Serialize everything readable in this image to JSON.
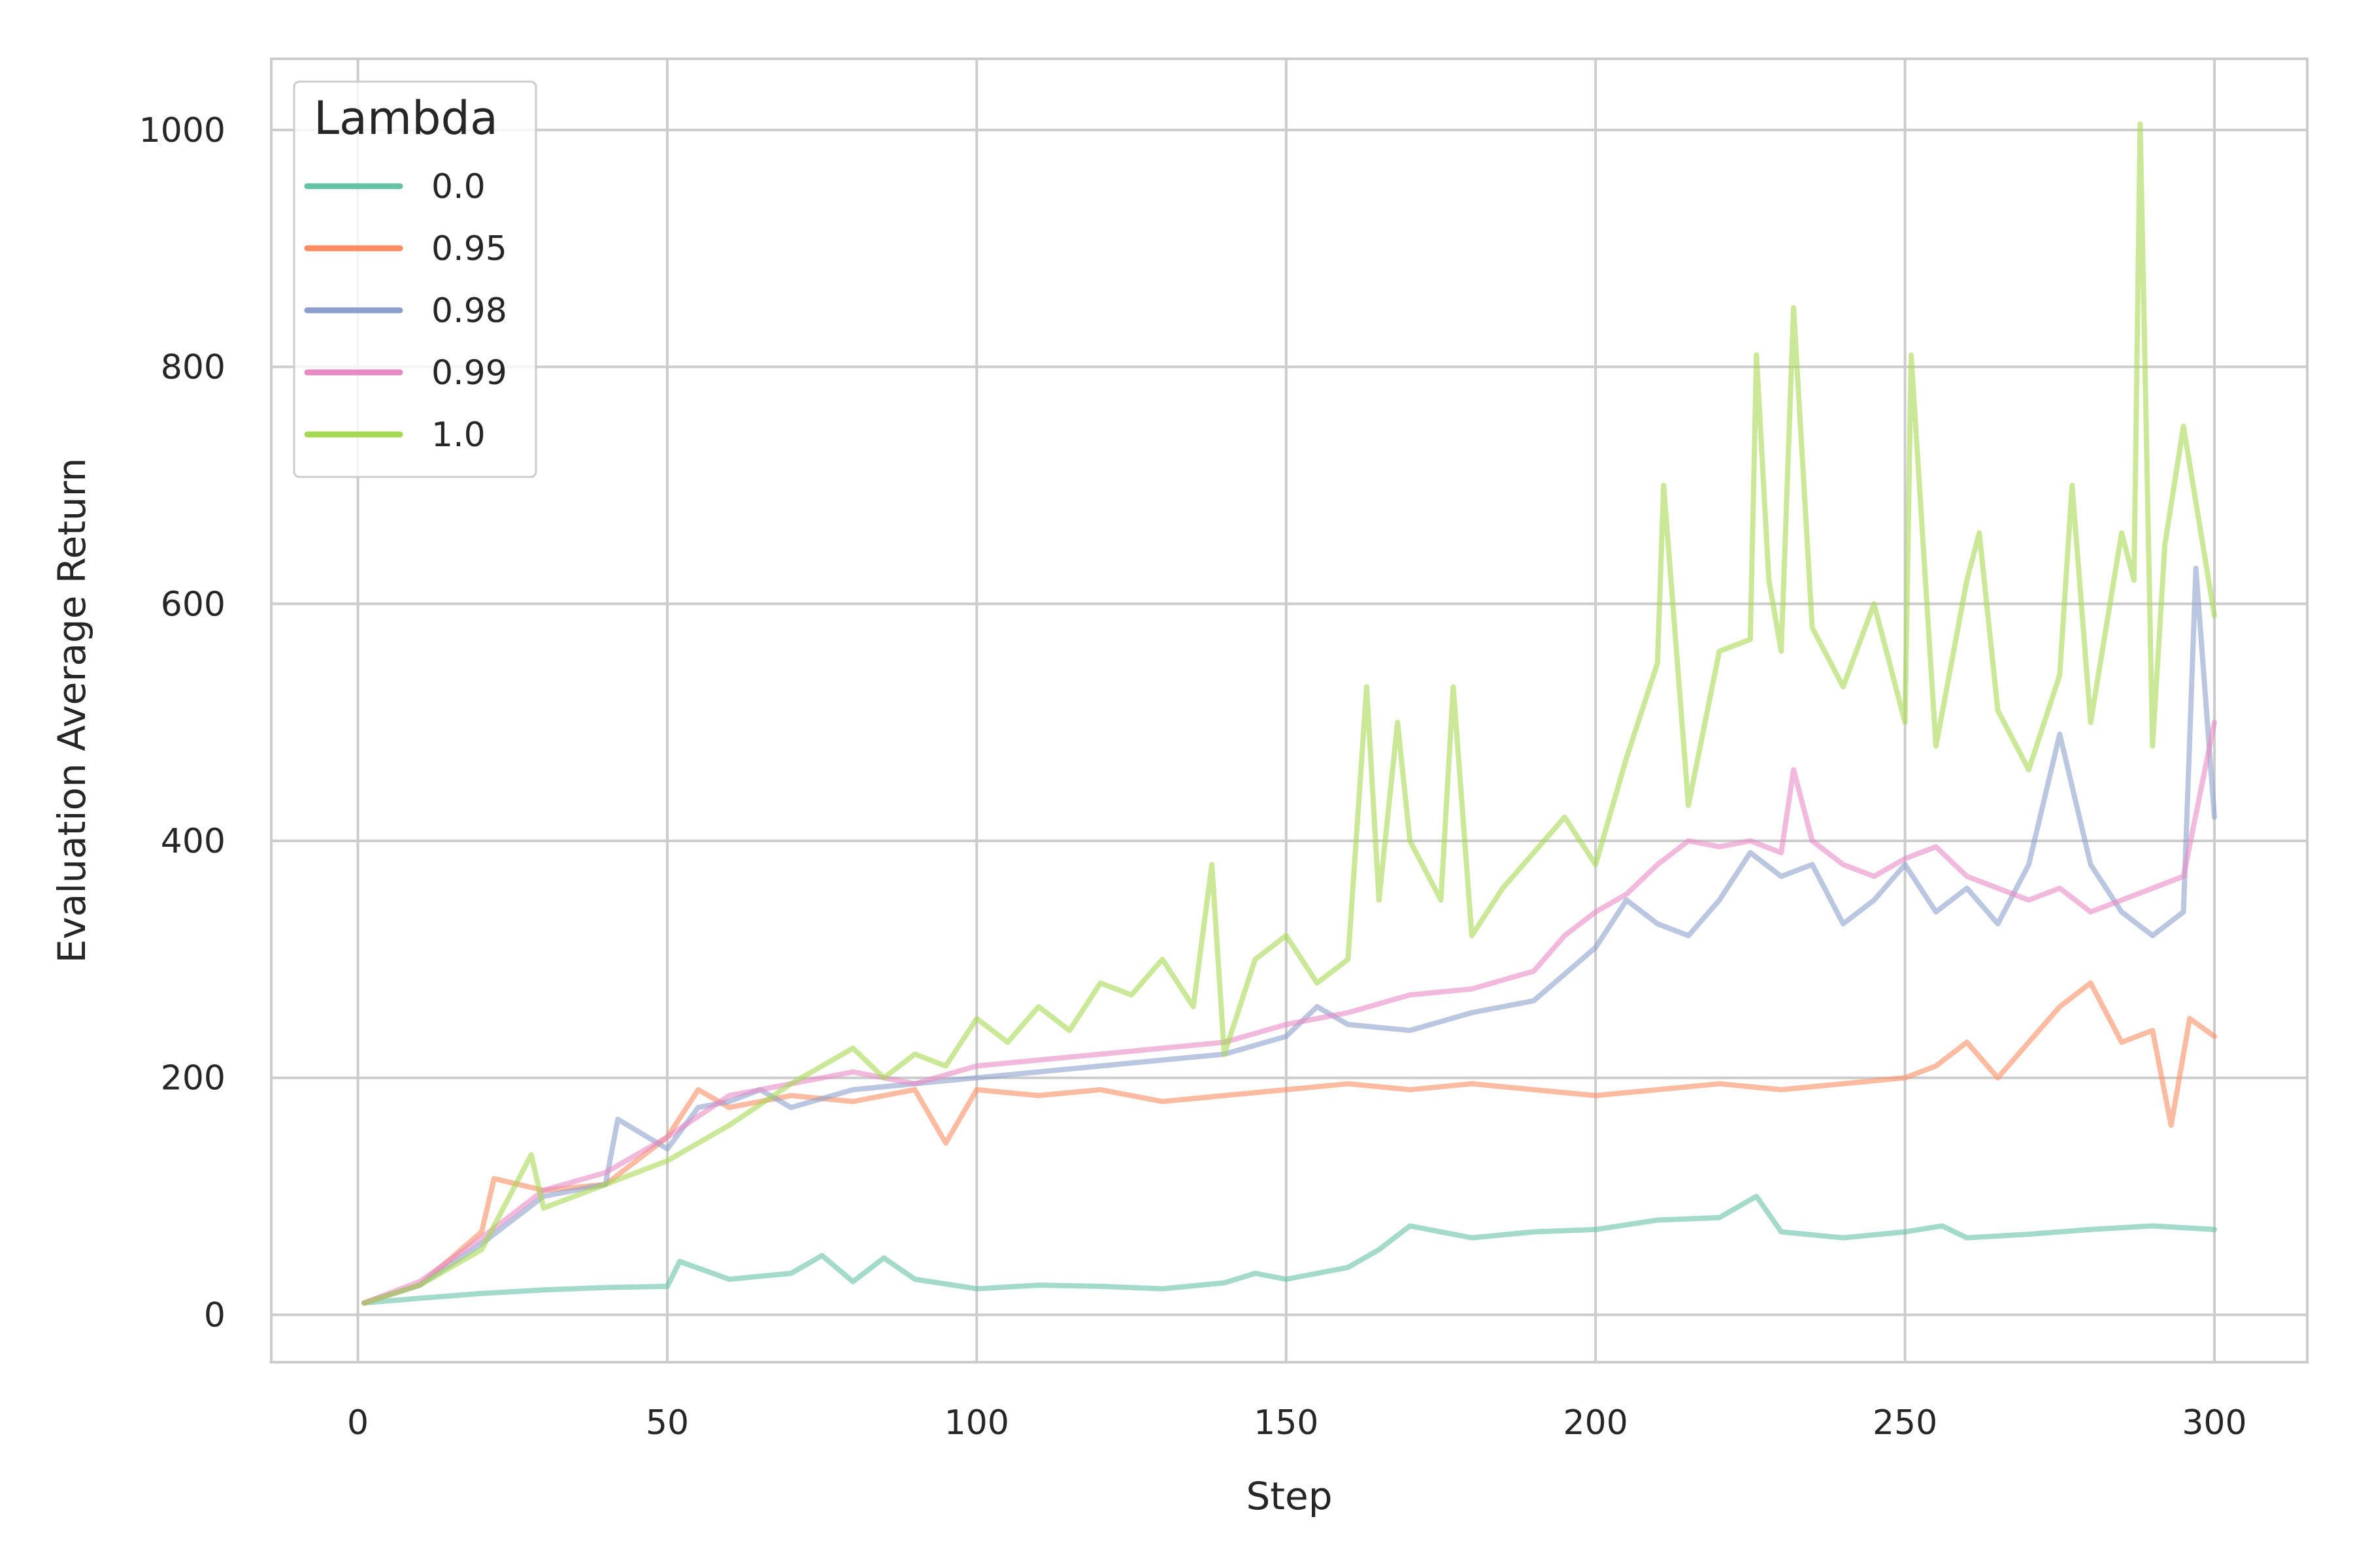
{
  "chart_data": {
    "type": "line",
    "xlabel": "Step",
    "ylabel": "Evaluation Average Return",
    "xlim": [
      -14,
      315
    ],
    "ylim": [
      -40,
      1060
    ],
    "xticks": [
      0,
      50,
      100,
      150,
      200,
      250,
      300
    ],
    "yticks": [
      0,
      200,
      400,
      600,
      800,
      1000
    ],
    "grid": true,
    "legend": {
      "title": "Lambda",
      "placement": "top-left"
    },
    "series": [
      {
        "name": "0.0",
        "color": "#66c2a5",
        "x": [
          1,
          10,
          20,
          30,
          40,
          50,
          52,
          60,
          70,
          75,
          80,
          85,
          90,
          100,
          110,
          120,
          130,
          140,
          145,
          150,
          160,
          165,
          170,
          180,
          190,
          200,
          210,
          220,
          226,
          230,
          240,
          250,
          256,
          260,
          270,
          280,
          290,
          300
        ],
        "y": [
          10,
          14,
          18,
          21,
          23,
          24,
          45,
          30,
          35,
          50,
          28,
          48,
          30,
          22,
          25,
          24,
          22,
          27,
          35,
          30,
          40,
          55,
          75,
          65,
          70,
          72,
          80,
          82,
          100,
          70,
          65,
          70,
          75,
          65,
          68,
          72,
          75,
          72
        ]
      },
      {
        "name": "0.95",
        "color": "#fc8d62",
        "x": [
          1,
          10,
          20,
          22,
          30,
          40,
          50,
          55,
          60,
          70,
          80,
          90,
          95,
          100,
          110,
          120,
          130,
          140,
          150,
          160,
          170,
          180,
          190,
          200,
          210,
          220,
          230,
          240,
          250,
          255,
          260,
          265,
          270,
          275,
          280,
          285,
          290,
          293,
          296,
          300
        ],
        "y": [
          10,
          25,
          70,
          115,
          105,
          110,
          150,
          190,
          175,
          185,
          180,
          190,
          145,
          190,
          185,
          190,
          180,
          185,
          190,
          195,
          190,
          195,
          190,
          185,
          190,
          195,
          190,
          195,
          200,
          210,
          230,
          200,
          230,
          260,
          280,
          230,
          240,
          160,
          250,
          235
        ]
      },
      {
        "name": "0.98",
        "color": "#8da0cb",
        "x": [
          1,
          10,
          20,
          30,
          40,
          42,
          50,
          55,
          60,
          65,
          70,
          80,
          90,
          100,
          110,
          120,
          130,
          140,
          150,
          155,
          160,
          170,
          180,
          190,
          200,
          205,
          210,
          215,
          220,
          225,
          230,
          235,
          240,
          245,
          250,
          255,
          260,
          265,
          270,
          275,
          280,
          285,
          290,
          295,
          297,
          300
        ],
        "y": [
          10,
          25,
          60,
          100,
          110,
          165,
          140,
          175,
          180,
          190,
          175,
          190,
          195,
          200,
          205,
          210,
          215,
          220,
          235,
          260,
          245,
          240,
          255,
          265,
          310,
          350,
          330,
          320,
          350,
          390,
          370,
          380,
          330,
          350,
          380,
          340,
          360,
          330,
          380,
          490,
          380,
          340,
          320,
          340,
          630,
          420
        ]
      },
      {
        "name": "0.99",
        "color": "#e78ac3",
        "x": [
          1,
          10,
          20,
          30,
          40,
          50,
          60,
          70,
          80,
          90,
          100,
          110,
          120,
          130,
          140,
          150,
          160,
          170,
          180,
          190,
          195,
          200,
          205,
          210,
          215,
          220,
          225,
          230,
          232,
          235,
          240,
          245,
          250,
          255,
          260,
          265,
          270,
          275,
          280,
          285,
          290,
          295,
          300
        ],
        "y": [
          10,
          28,
          65,
          105,
          120,
          150,
          185,
          195,
          205,
          195,
          210,
          215,
          220,
          225,
          230,
          245,
          255,
          270,
          275,
          290,
          320,
          340,
          355,
          380,
          400,
          395,
          400,
          390,
          460,
          400,
          380,
          370,
          385,
          395,
          370,
          360,
          350,
          360,
          340,
          350,
          360,
          370,
          500
        ]
      },
      {
        "name": "1.0",
        "color": "#a6d854",
        "x": [
          1,
          10,
          20,
          28,
          30,
          40,
          50,
          60,
          70,
          80,
          85,
          90,
          95,
          100,
          105,
          110,
          115,
          120,
          125,
          130,
          135,
          138,
          140,
          145,
          150,
          155,
          160,
          163,
          165,
          168,
          170,
          175,
          177,
          180,
          185,
          190,
          195,
          200,
          205,
          210,
          211,
          215,
          220,
          225,
          226,
          228,
          230,
          232,
          235,
          240,
          245,
          250,
          251,
          255,
          260,
          262,
          265,
          270,
          275,
          277,
          280,
          285,
          287,
          288,
          290,
          292,
          295,
          300
        ],
        "y": [
          10,
          25,
          55,
          135,
          90,
          110,
          130,
          160,
          195,
          225,
          200,
          220,
          210,
          250,
          230,
          260,
          240,
          280,
          270,
          300,
          260,
          380,
          220,
          300,
          320,
          280,
          300,
          530,
          350,
          500,
          400,
          350,
          530,
          320,
          360,
          390,
          420,
          380,
          470,
          550,
          700,
          430,
          560,
          570,
          810,
          620,
          560,
          850,
          580,
          530,
          600,
          500,
          810,
          480,
          620,
          660,
          510,
          460,
          540,
          700,
          500,
          660,
          620,
          1005,
          480,
          650,
          750,
          590
        ]
      }
    ]
  }
}
